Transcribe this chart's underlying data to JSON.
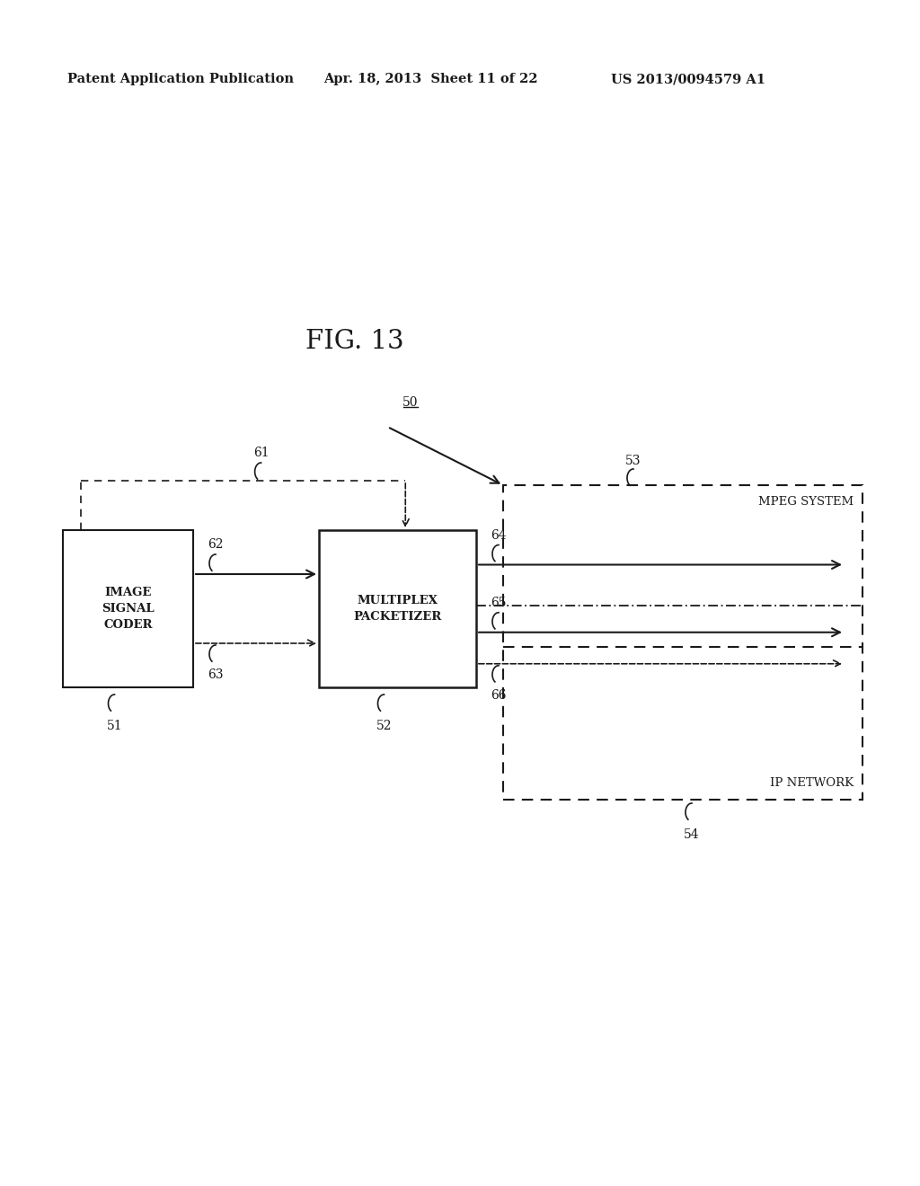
{
  "fig_label": "FIG. 13",
  "header_left": "Patent Application Publication",
  "header_mid": "Apr. 18, 2013  Sheet 11 of 22",
  "header_right": "US 2013/0094579 A1",
  "bg_color": "#ffffff",
  "text_color": "#1a1a1a",
  "box_color": "#1a1a1a",
  "header_font_size": 10,
  "fig_font_size": 20
}
